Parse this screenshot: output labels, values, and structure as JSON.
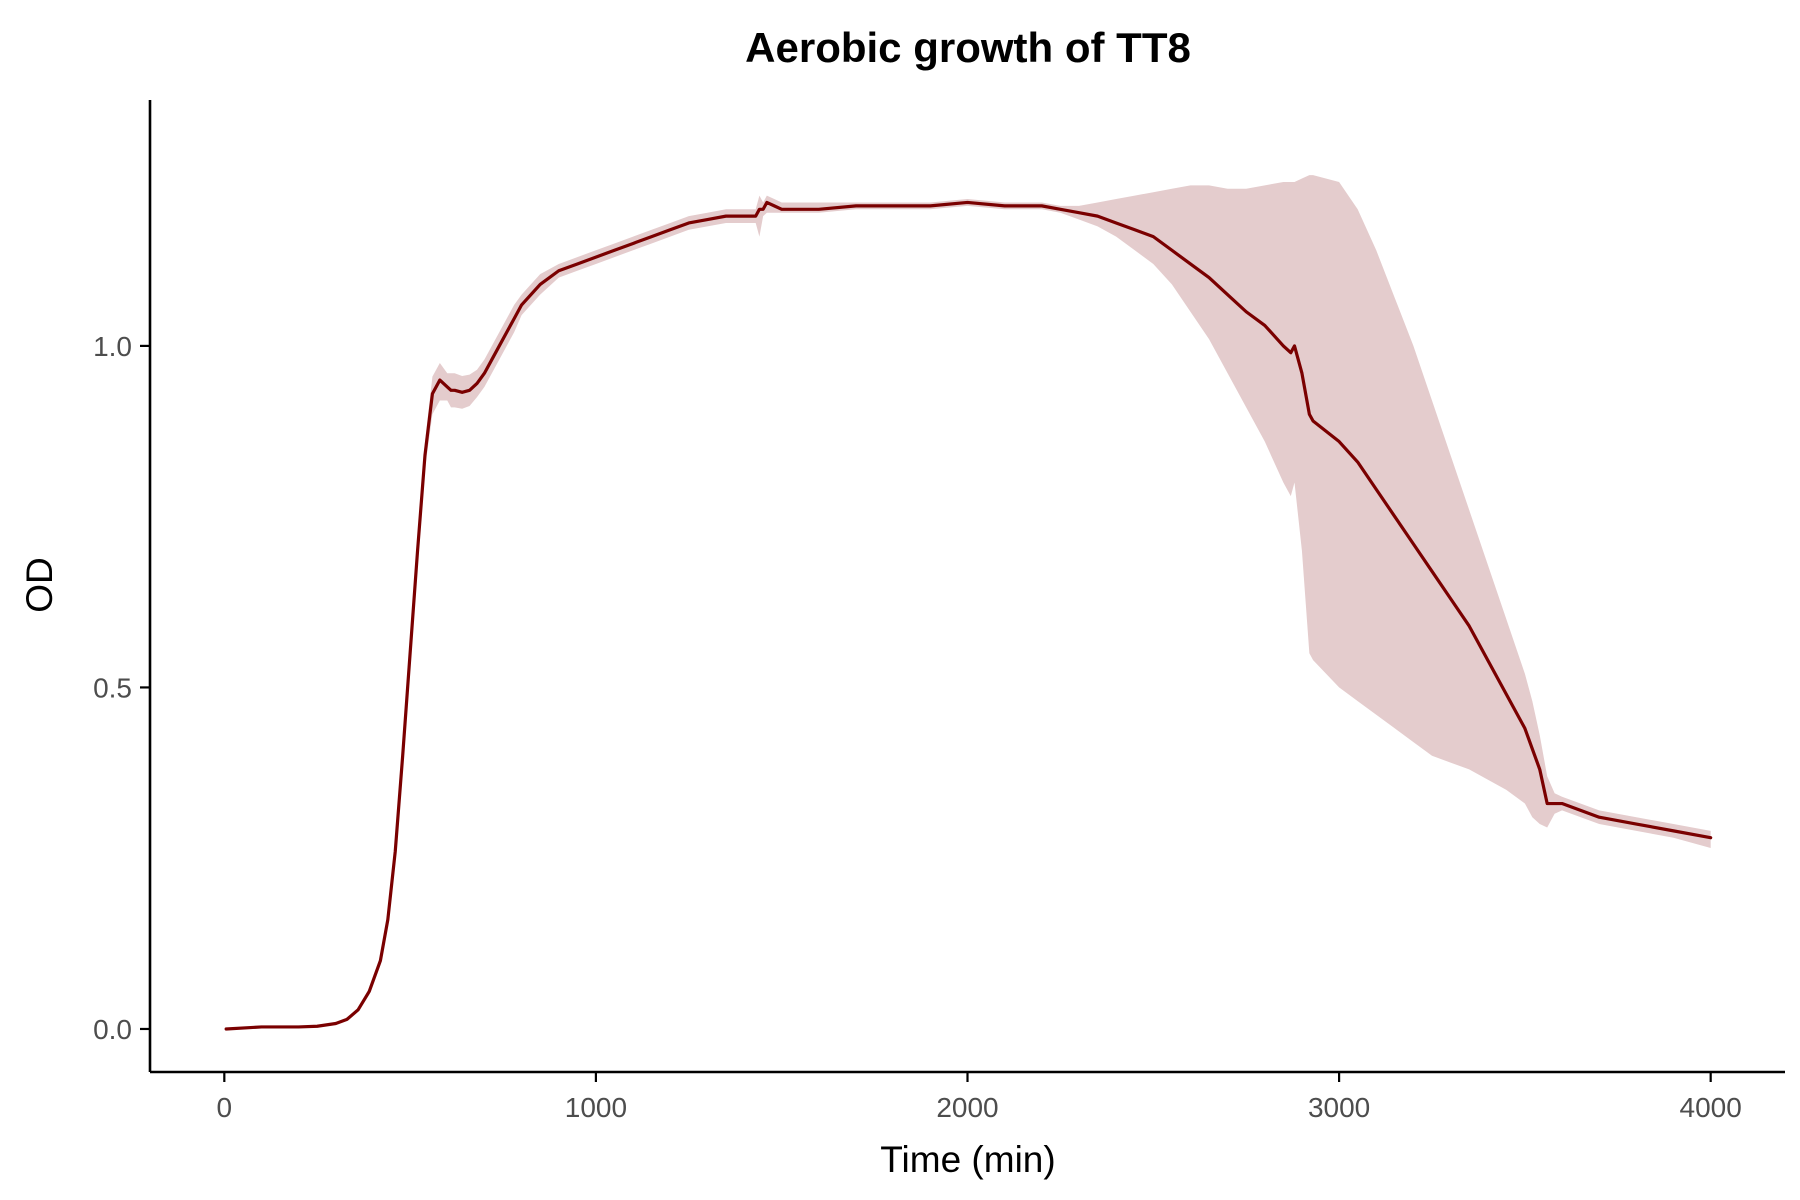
{
  "chart_data": {
    "type": "line",
    "title": "Aerobic growth of TT8",
    "xlabel": "Time (min)",
    "ylabel": "OD",
    "xlim": [
      -200,
      4200
    ],
    "ylim": [
      -0.063,
      1.36
    ],
    "grid": false,
    "x_ticks": [
      {
        "value": 0,
        "label": "0"
      },
      {
        "value": 1000,
        "label": "1000"
      },
      {
        "value": 2000,
        "label": "2000"
      },
      {
        "value": 3000,
        "label": "3000"
      },
      {
        "value": 4000,
        "label": "4000"
      }
    ],
    "y_ticks": [
      {
        "value": 0.0,
        "label": "0.0"
      },
      {
        "value": 0.5,
        "label": "0.5"
      },
      {
        "value": 1.0,
        "label": "1.0"
      }
    ],
    "colors": {
      "line": "#7a0000",
      "ribbon": "#e4cccd"
    },
    "series": [
      {
        "x": [
          5,
          100,
          200,
          250,
          300,
          330,
          360,
          390,
          420,
          440,
          460,
          480,
          500,
          520,
          540,
          560,
          580,
          600,
          610,
          620,
          640,
          660,
          680,
          700,
          720,
          750,
          780,
          800,
          850,
          900,
          950,
          1000,
          1050,
          1100,
          1150,
          1200,
          1250,
          1300,
          1350,
          1400,
          1430,
          1440,
          1450,
          1460,
          1480,
          1500,
          1600,
          1700,
          1800,
          1900,
          2000,
          2100,
          2200,
          2250,
          2300,
          2350,
          2400,
          2450,
          2500,
          2550,
          2600,
          2650,
          2700,
          2750,
          2800,
          2850,
          2870,
          2880,
          2900,
          2920,
          2930,
          3000,
          3050,
          3100,
          3150,
          3200,
          3250,
          3300,
          3350,
          3400,
          3450,
          3500,
          3520,
          3540,
          3560,
          3580,
          3600,
          3700,
          3800,
          3900,
          4000
        ],
        "y": [
          0.0,
          0.003,
          0.003,
          0.004,
          0.008,
          0.014,
          0.028,
          0.055,
          0.1,
          0.16,
          0.26,
          0.4,
          0.55,
          0.7,
          0.84,
          0.93,
          0.95,
          0.94,
          0.935,
          0.935,
          0.932,
          0.935,
          0.945,
          0.96,
          0.98,
          1.01,
          1.04,
          1.06,
          1.09,
          1.11,
          1.12,
          1.13,
          1.14,
          1.15,
          1.16,
          1.17,
          1.18,
          1.185,
          1.19,
          1.19,
          1.19,
          1.2,
          1.2,
          1.21,
          1.205,
          1.2,
          1.2,
          1.205,
          1.205,
          1.205,
          1.21,
          1.205,
          1.205,
          1.2,
          1.195,
          1.19,
          1.18,
          1.17,
          1.16,
          1.14,
          1.12,
          1.1,
          1.075,
          1.05,
          1.03,
          1.0,
          0.99,
          1.0,
          0.96,
          0.9,
          0.89,
          0.86,
          0.83,
          0.79,
          0.75,
          0.71,
          0.67,
          0.63,
          0.59,
          0.54,
          0.49,
          0.44,
          0.41,
          0.38,
          0.33,
          0.33,
          0.33,
          0.31,
          0.3,
          0.29,
          0.28
        ],
        "ymin": [
          0.0,
          0.002,
          0.002,
          0.003,
          0.007,
          0.012,
          0.025,
          0.05,
          0.094,
          0.152,
          0.25,
          0.39,
          0.54,
          0.69,
          0.82,
          0.9,
          0.92,
          0.92,
          0.91,
          0.91,
          0.908,
          0.912,
          0.925,
          0.94,
          0.96,
          0.99,
          1.02,
          1.045,
          1.075,
          1.1,
          1.11,
          1.12,
          1.13,
          1.14,
          1.15,
          1.16,
          1.17,
          1.175,
          1.18,
          1.18,
          1.18,
          1.16,
          1.19,
          1.195,
          1.195,
          1.195,
          1.195,
          1.2,
          1.2,
          1.2,
          1.205,
          1.2,
          1.2,
          1.195,
          1.185,
          1.175,
          1.16,
          1.14,
          1.12,
          1.09,
          1.05,
          1.01,
          0.96,
          0.91,
          0.86,
          0.8,
          0.78,
          0.8,
          0.7,
          0.55,
          0.54,
          0.5,
          0.48,
          0.46,
          0.44,
          0.42,
          0.4,
          0.39,
          0.38,
          0.365,
          0.35,
          0.33,
          0.31,
          0.3,
          0.295,
          0.315,
          0.32,
          0.3,
          0.29,
          0.28,
          0.265
        ],
        "ymax": [
          0.0,
          0.004,
          0.004,
          0.005,
          0.009,
          0.016,
          0.031,
          0.06,
          0.106,
          0.168,
          0.27,
          0.41,
          0.56,
          0.71,
          0.86,
          0.955,
          0.975,
          0.96,
          0.96,
          0.96,
          0.956,
          0.958,
          0.965,
          0.98,
          1.0,
          1.03,
          1.06,
          1.075,
          1.105,
          1.12,
          1.13,
          1.14,
          1.15,
          1.16,
          1.17,
          1.18,
          1.19,
          1.195,
          1.2,
          1.2,
          1.2,
          1.22,
          1.21,
          1.22,
          1.215,
          1.21,
          1.21,
          1.21,
          1.21,
          1.21,
          1.215,
          1.21,
          1.21,
          1.205,
          1.205,
          1.21,
          1.215,
          1.22,
          1.225,
          1.23,
          1.235,
          1.235,
          1.23,
          1.23,
          1.235,
          1.24,
          1.24,
          1.24,
          1.245,
          1.25,
          1.25,
          1.24,
          1.2,
          1.14,
          1.07,
          1.0,
          0.92,
          0.84,
          0.76,
          0.68,
          0.6,
          0.52,
          0.48,
          0.43,
          0.37,
          0.345,
          0.34,
          0.32,
          0.31,
          0.3,
          0.29
        ]
      }
    ]
  }
}
